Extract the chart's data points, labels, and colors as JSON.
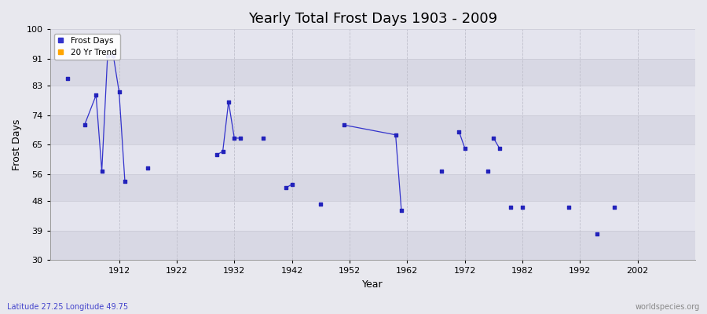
{
  "title": "Yearly Total Frost Days 1903 - 2009",
  "xlabel": "Year",
  "ylabel": "Frost Days",
  "lat_lon_label": "Latitude 27.25 Longitude 49.75",
  "watermark": "worldspecies.org",
  "ylim": [
    30,
    100
  ],
  "yticks": [
    30,
    39,
    48,
    56,
    65,
    74,
    83,
    91,
    100
  ],
  "xlim": [
    1900,
    2012
  ],
  "xticks": [
    1912,
    1922,
    1932,
    1942,
    1952,
    1962,
    1972,
    1982,
    1992,
    2002
  ],
  "line_color": "#3333cc",
  "marker_color": "#2222bb",
  "background_color": "#e8e8ee",
  "plot_bg_color": "#e0e0ea",
  "title_fontsize": 13,
  "axis_fontsize": 9,
  "tick_fontsize": 8,
  "connected_groups": [
    {
      "years": [
        1906,
        1908,
        1909,
        1910,
        1911,
        1912,
        1913
      ],
      "values": [
        71,
        80,
        57,
        92,
        92,
        81,
        54
      ]
    },
    {
      "years": [
        1929,
        1930,
        1931,
        1932,
        1933
      ],
      "values": [
        62,
        63,
        78,
        67,
        67
      ]
    },
    {
      "years": [
        1941,
        1942
      ],
      "values": [
        52,
        53
      ]
    },
    {
      "years": [
        1951,
        1960,
        1961
      ],
      "values": [
        71,
        68,
        45
      ]
    },
    {
      "years": [
        1971,
        1972
      ],
      "values": [
        69,
        64
      ]
    },
    {
      "years": [
        1977,
        1978
      ],
      "values": [
        67,
        64
      ]
    }
  ],
  "isolated_points": [
    [
      1903,
      85
    ],
    [
      1917,
      58
    ],
    [
      1937,
      67
    ],
    [
      1947,
      47
    ],
    [
      1968,
      57
    ],
    [
      1976,
      57
    ],
    [
      1980,
      46
    ],
    [
      1982,
      46
    ],
    [
      1990,
      46
    ],
    [
      1995,
      38
    ],
    [
      1998,
      46
    ]
  ]
}
